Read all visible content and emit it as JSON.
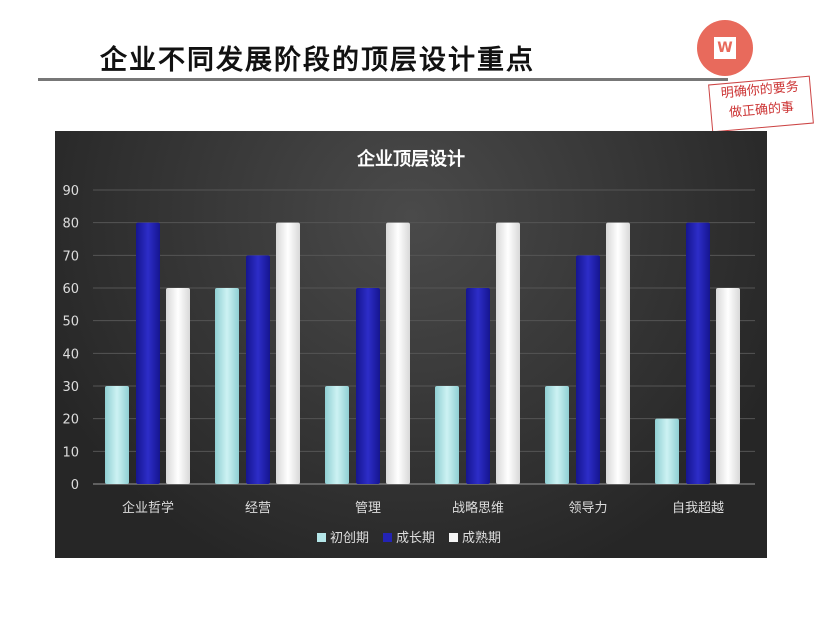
{
  "page_title": "企业不同发展阶段的顶层设计重点",
  "logo": {
    "letter": "W"
  },
  "stamp": {
    "line1": "明确你的要务",
    "line2": "做正确的事"
  },
  "chart_data": {
    "type": "bar",
    "title": "企业顶层设计",
    "categories": [
      "企业哲学",
      "经营",
      "管理",
      "战略思维",
      "领导力",
      "自我超越"
    ],
    "series": [
      {
        "name": "初创期",
        "color": "#b4e6e8",
        "values": [
          30,
          60,
          30,
          30,
          30,
          20
        ]
      },
      {
        "name": "成长期",
        "color": "#2323b4",
        "values": [
          80,
          70,
          60,
          60,
          70,
          80
        ]
      },
      {
        "name": "成熟期",
        "color": "#f4f4f4",
        "values": [
          60,
          80,
          80,
          80,
          80,
          60
        ]
      }
    ],
    "ylim": [
      0,
      90
    ],
    "yticks": [
      0,
      10,
      20,
      30,
      40,
      50,
      60,
      70,
      80,
      90
    ],
    "grid": true,
    "legend": "bottom"
  }
}
